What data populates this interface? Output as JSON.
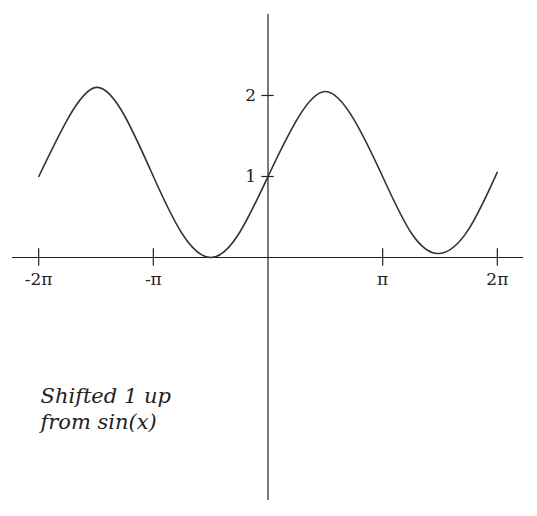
{
  "chart_data": {
    "type": "line",
    "annotation": "Shifted 1 up\nfrom sin(x)",
    "x": [
      -6.28,
      -5.5,
      -4.71,
      -3.93,
      -3.14,
      -2.36,
      -1.57,
      -0.79,
      0,
      0.79,
      1.57,
      2.36,
      3.14,
      3.93,
      4.71,
      5.5,
      6.28
    ],
    "values": [
      1.0,
      1.7,
      2.1,
      1.75,
      1.0,
      0.3,
      0.0,
      0.3,
      1.0,
      1.7,
      2.05,
      1.7,
      1.0,
      0.3,
      0.05,
      0.35,
      1.05
    ],
    "color": "#333333",
    "xlim": [
      -7.0,
      7.0
    ],
    "ylim": [
      -3.0,
      3.0
    ],
    "xticks": [
      {
        "value": -6.283,
        "label": "-2π"
      },
      {
        "value": -3.1416,
        "label": "-π"
      },
      {
        "value": 3.1416,
        "label": "π"
      },
      {
        "value": 6.283,
        "label": "2π"
      }
    ],
    "yticks": [
      1,
      2
    ],
    "grid": false
  }
}
